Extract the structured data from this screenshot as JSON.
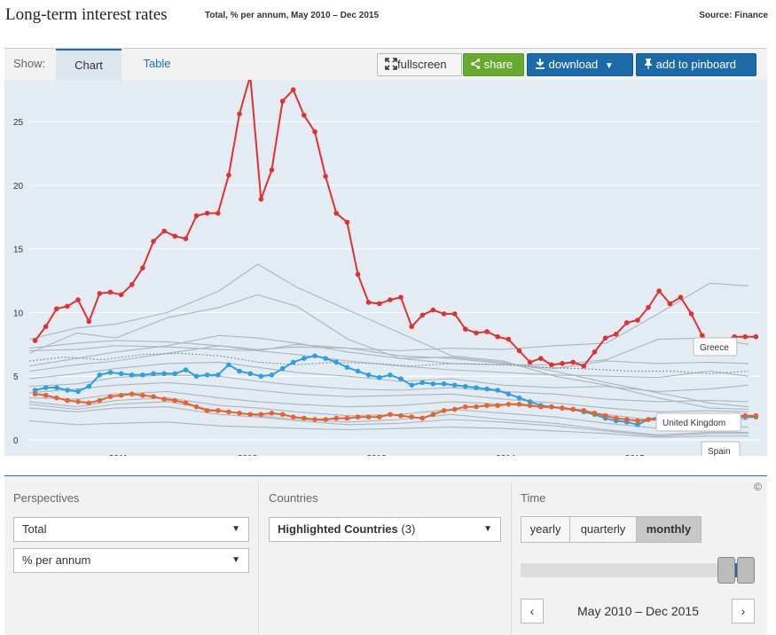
{
  "header": {
    "title": "Long-term interest rates",
    "subtitle": "Total, % per annum, May 2010 – Dec 2015",
    "source": "Source: Finance"
  },
  "toolbar": {
    "show_label": "Show:",
    "tab_chart": "Chart",
    "tab_table": "Table",
    "fullscreen": "fullscreen",
    "share": "share",
    "download": "download",
    "pinboard": "add to pinboard"
  },
  "chart_data": {
    "type": "line",
    "x_ticks": [
      "2011",
      "2012",
      "2013",
      "2014",
      "2015"
    ],
    "y_ticks": [
      0,
      5,
      10,
      15,
      20,
      25
    ],
    "ylim": [
      0,
      28
    ],
    "xlim": [
      2010.33,
      2015.99
    ],
    "grid": true,
    "series": [
      {
        "name": "Greece",
        "color": "#e03131",
        "x": [
          2010.375,
          2010.458,
          2010.542,
          2010.625,
          2010.708,
          2010.792,
          2010.875,
          2010.958,
          2011.042,
          2011.125,
          2011.208,
          2011.292,
          2011.375,
          2011.458,
          2011.542,
          2011.625,
          2011.708,
          2011.792,
          2011.875,
          2011.958,
          2012.042,
          2012.125,
          2012.208,
          2012.292,
          2012.375,
          2012.458,
          2012.542,
          2012.625,
          2012.708,
          2012.792,
          2012.875,
          2012.958,
          2013.042,
          2013.125,
          2013.208,
          2013.292,
          2013.375,
          2013.458,
          2013.542,
          2013.625,
          2013.708,
          2013.792,
          2013.875,
          2013.958,
          2014.042,
          2014.125,
          2014.208,
          2014.292,
          2014.375,
          2014.458,
          2014.542,
          2014.625,
          2014.708,
          2014.792,
          2014.875,
          2014.958,
          2015.042,
          2015.125,
          2015.208,
          2015.292,
          2015.375,
          2015.458,
          2015.542,
          2015.625,
          2015.708,
          2015.792,
          2015.875,
          2015.958
        ],
        "values": [
          7.8,
          8.9,
          10.3,
          10.5,
          11.0,
          9.3,
          11.5,
          11.6,
          11.4,
          12.2,
          13.5,
          15.6,
          16.4,
          16.0,
          15.8,
          17.6,
          17.8,
          17.8,
          20.8,
          25.6,
          28.6,
          18.9,
          21.2,
          26.6,
          27.5,
          25.5,
          24.2,
          20.7,
          17.8,
          17.1,
          13.0,
          10.8,
          10.7,
          11.0,
          11.2,
          8.9,
          9.8,
          10.2,
          9.9,
          9.9,
          8.7,
          8.4,
          8.5,
          8.1,
          7.9,
          7.0,
          6.1,
          6.4,
          5.9,
          6.0,
          6.1,
          5.8,
          6.9,
          8.0,
          8.3,
          9.2,
          9.4,
          10.4,
          11.7,
          10.7,
          11.2,
          9.9,
          8.2,
          7.2,
          7.8,
          8.1,
          8.1,
          8.1
        ],
        "label": "Greece"
      },
      {
        "name": "United Kingdom",
        "color": "#2f9fe0",
        "x": [
          2010.375,
          2010.458,
          2010.542,
          2010.625,
          2010.708,
          2010.792,
          2010.875,
          2010.958,
          2011.042,
          2011.125,
          2011.208,
          2011.292,
          2011.375,
          2011.458,
          2011.542,
          2011.625,
          2011.708,
          2011.792,
          2011.875,
          2011.958,
          2012.042,
          2012.125,
          2012.208,
          2012.292,
          2012.375,
          2012.458,
          2012.542,
          2012.625,
          2012.708,
          2012.792,
          2012.875,
          2012.958,
          2013.042,
          2013.125,
          2013.208,
          2013.292,
          2013.375,
          2013.458,
          2013.542,
          2013.625,
          2013.708,
          2013.792,
          2013.875,
          2013.958,
          2014.042,
          2014.125,
          2014.208,
          2014.292,
          2014.375,
          2014.458,
          2014.542,
          2014.625,
          2014.708,
          2014.792,
          2014.875,
          2014.958,
          2015.042,
          2015.125,
          2015.208,
          2015.292,
          2015.375,
          2015.458,
          2015.542,
          2015.625,
          2015.708,
          2015.792,
          2015.875,
          2015.958
        ],
        "values": [
          3.9,
          4.1,
          4.1,
          3.9,
          3.8,
          4.2,
          5.1,
          5.3,
          5.2,
          5.1,
          5.1,
          5.2,
          5.2,
          5.2,
          5.5,
          5.0,
          5.1,
          5.1,
          5.9,
          5.4,
          5.2,
          5.0,
          5.1,
          5.6,
          6.1,
          6.4,
          6.6,
          6.4,
          6.1,
          5.7,
          5.4,
          5.1,
          4.9,
          5.1,
          4.8,
          4.3,
          4.5,
          4.4,
          4.4,
          4.3,
          4.2,
          4.1,
          4.0,
          3.9,
          3.6,
          3.3,
          3.0,
          2.7,
          2.6,
          2.5,
          2.4,
          2.2,
          2.0,
          1.7,
          1.5,
          1.4,
          1.2,
          1.6,
          1.8,
          1.9,
          1.9,
          1.9,
          1.9,
          1.9,
          1.8,
          1.8,
          1.8,
          1.8
        ],
        "label": "United Kingdom"
      },
      {
        "name": "Spain",
        "color": "#e8622c",
        "x": [
          2010.375,
          2010.458,
          2010.542,
          2010.625,
          2010.708,
          2010.792,
          2010.875,
          2010.958,
          2011.042,
          2011.125,
          2011.208,
          2011.292,
          2011.375,
          2011.458,
          2011.542,
          2011.625,
          2011.708,
          2011.792,
          2011.875,
          2011.958,
          2012.042,
          2012.125,
          2012.208,
          2012.292,
          2012.375,
          2012.458,
          2012.542,
          2012.625,
          2012.708,
          2012.792,
          2012.875,
          2012.958,
          2013.042,
          2013.125,
          2013.208,
          2013.292,
          2013.375,
          2013.458,
          2013.542,
          2013.625,
          2013.708,
          2013.792,
          2013.875,
          2013.958,
          2014.042,
          2014.125,
          2014.208,
          2014.292,
          2014.375,
          2014.458,
          2014.542,
          2014.625,
          2014.708,
          2014.792,
          2014.875,
          2014.958,
          2015.042,
          2015.125,
          2015.208,
          2015.292,
          2015.375,
          2015.458,
          2015.542,
          2015.625,
          2015.708,
          2015.792,
          2015.875,
          2015.958
        ],
        "values": [
          3.6,
          3.5,
          3.3,
          3.1,
          3.0,
          2.9,
          3.1,
          3.4,
          3.5,
          3.6,
          3.5,
          3.4,
          3.2,
          3.1,
          2.9,
          2.6,
          2.3,
          2.3,
          2.2,
          2.1,
          2.0,
          2.0,
          2.1,
          2.0,
          1.8,
          1.7,
          1.6,
          1.6,
          1.7,
          1.7,
          1.8,
          1.8,
          1.8,
          2.0,
          1.9,
          1.8,
          1.7,
          2.0,
          2.3,
          2.4,
          2.6,
          2.6,
          2.7,
          2.7,
          2.8,
          2.8,
          2.7,
          2.6,
          2.6,
          2.5,
          2.4,
          2.3,
          2.1,
          1.9,
          1.7,
          1.6,
          1.5,
          1.6,
          1.6,
          1.7,
          1.8,
          1.9,
          1.9,
          1.9,
          1.9,
          1.9,
          1.9,
          1.9
        ],
        "label": "Spain"
      }
    ],
    "background_series": [
      {
        "x": [
          2010.33,
          2010.7,
          2011.0,
          2011.4,
          2011.8,
          2012.1,
          2012.4,
          2012.8,
          2013.2,
          2013.6,
          2014.0,
          2014.4,
          2014.8,
          2015.2,
          2015.6,
          2015.9
        ],
        "values": [
          7.9,
          8.8,
          9.1,
          10.0,
          11.7,
          13.8,
          12.0,
          10.2,
          8.4,
          6.6,
          6.2,
          5.0,
          4.3,
          3.3,
          2.5,
          2.4
        ]
      },
      {
        "x": [
          2010.33,
          2010.7,
          2011.0,
          2011.4,
          2011.8,
          2012.1,
          2012.4,
          2012.8,
          2013.2,
          2013.6,
          2014.0,
          2014.4,
          2014.8,
          2015.2,
          2015.6,
          2015.9
        ],
        "values": [
          6.8,
          8.4,
          8.0,
          9.6,
          10.4,
          11.4,
          10.5,
          7.9,
          6.4,
          6.5,
          6.1,
          5.4,
          4.5,
          3.7,
          2.9,
          2.6
        ]
      },
      {
        "x": [
          2010.33,
          2010.7,
          2011.0,
          2011.4,
          2011.8,
          2012.1,
          2012.4,
          2012.8,
          2013.2,
          2013.6,
          2014.0,
          2014.4,
          2014.8,
          2015.2,
          2015.6,
          2015.9
        ],
        "values": [
          7.2,
          7.6,
          7.8,
          7.7,
          7.4,
          7.1,
          7.3,
          7.2,
          7.0,
          7.2,
          7.1,
          7.4,
          7.6,
          9.9,
          12.3,
          12.1
        ]
      },
      {
        "x": [
          2010.33,
          2010.7,
          2011.0,
          2011.4,
          2011.8,
          2012.1,
          2012.4,
          2012.8,
          2013.2,
          2013.6,
          2014.0,
          2014.4,
          2014.8,
          2015.2,
          2015.6,
          2015.9
        ],
        "values": [
          7.0,
          7.1,
          7.4,
          7.3,
          7.1,
          7.0,
          7.5,
          7.2,
          6.6,
          6.4,
          6.0,
          5.6,
          6.2,
          6.0,
          6.1,
          6.0
        ]
      },
      {
        "x": [
          2010.33,
          2010.7,
          2011.0,
          2011.4,
          2011.8,
          2012.1,
          2012.4,
          2012.8,
          2013.2,
          2013.6,
          2014.0,
          2014.4,
          2014.8,
          2015.2,
          2015.6,
          2015.9
        ],
        "values": [
          5.8,
          6.4,
          6.9,
          7.4,
          8.2,
          8.0,
          7.6,
          6.9,
          6.4,
          6.0,
          5.9,
          5.9,
          6.3,
          7.9,
          8.0,
          7.5
        ]
      },
      {
        "x": [
          2010.33,
          2010.7,
          2011.0,
          2011.4,
          2011.8,
          2012.1,
          2012.4,
          2012.8,
          2013.2,
          2013.6,
          2014.0,
          2014.4,
          2014.8,
          2015.2,
          2015.6,
          2015.9
        ],
        "values": [
          5.4,
          5.9,
          6.2,
          6.8,
          7.4,
          7.0,
          6.7,
          6.2,
          5.8,
          5.5,
          5.3,
          5.1,
          5.0,
          4.9,
          5.4,
          5.0
        ]
      },
      {
        "x": [
          2010.33,
          2010.7,
          2011.0,
          2011.4,
          2011.8,
          2012.1,
          2012.4,
          2012.8,
          2013.2,
          2013.6,
          2014.0,
          2014.4,
          2014.8,
          2015.2,
          2015.6,
          2015.9
        ],
        "values": [
          4.8,
          5.2,
          5.6,
          6.0,
          6.1,
          5.7,
          5.3,
          5.0,
          4.6,
          4.8,
          4.3,
          4.1,
          4.2,
          3.8,
          4.0,
          4.3
        ]
      },
      {
        "x": [
          2010.33,
          2010.7,
          2011.0,
          2011.4,
          2011.8,
          2012.1,
          2012.4,
          2012.8,
          2013.2,
          2013.6,
          2014.0,
          2014.4,
          2014.8,
          2015.2,
          2015.6,
          2015.9
        ],
        "values": [
          4.2,
          4.4,
          4.9,
          5.1,
          5.0,
          4.6,
          4.3,
          4.0,
          3.9,
          4.1,
          3.8,
          3.6,
          3.2,
          3.0,
          3.1,
          3.0
        ]
      },
      {
        "x": [
          2010.33,
          2010.7,
          2011.0,
          2011.4,
          2011.8,
          2012.1,
          2012.4,
          2012.8,
          2013.2,
          2013.6,
          2014.0,
          2014.4,
          2014.8,
          2015.2,
          2015.6,
          2015.9
        ],
        "values": [
          3.7,
          4.0,
          4.3,
          4.5,
          4.2,
          3.9,
          3.6,
          3.4,
          3.5,
          3.6,
          3.2,
          2.9,
          2.5,
          2.2,
          2.3,
          2.2
        ]
      },
      {
        "x": [
          2010.33,
          2010.7,
          2011.0,
          2011.4,
          2011.8,
          2012.1,
          2012.4,
          2012.8,
          2013.2,
          2013.6,
          2014.0,
          2014.4,
          2014.8,
          2015.2,
          2015.6,
          2015.9
        ],
        "values": [
          3.3,
          3.2,
          3.6,
          3.8,
          3.3,
          3.0,
          2.8,
          2.6,
          2.7,
          3.0,
          2.8,
          2.5,
          2.0,
          1.5,
          1.7,
          1.6
        ]
      },
      {
        "x": [
          2010.33,
          2010.7,
          2011.0,
          2011.4,
          2011.8,
          2012.1,
          2012.4,
          2012.8,
          2013.2,
          2013.6,
          2014.0,
          2014.4,
          2014.8,
          2015.2,
          2015.6,
          2015.9
        ],
        "values": [
          3.0,
          2.6,
          3.1,
          3.3,
          2.7,
          2.5,
          2.2,
          1.9,
          2.0,
          2.4,
          2.1,
          1.8,
          1.3,
          0.9,
          1.1,
          1.0
        ]
      },
      {
        "x": [
          2010.33,
          2010.7,
          2011.0,
          2011.4,
          2011.8,
          2012.1,
          2012.4,
          2012.8,
          2013.2,
          2013.6,
          2014.0,
          2014.4,
          2014.8,
          2015.2,
          2015.6,
          2015.9
        ],
        "values": [
          2.8,
          2.4,
          2.8,
          3.0,
          2.3,
          1.9,
          1.6,
          1.4,
          1.6,
          2.0,
          1.6,
          1.3,
          0.8,
          0.4,
          0.6,
          0.6
        ]
      },
      {
        "x": [
          2010.33,
          2010.7,
          2011.0,
          2011.4,
          2011.8,
          2012.1,
          2012.4,
          2012.8,
          2013.2,
          2013.6,
          2014.0,
          2014.4,
          2014.8,
          2015.2,
          2015.6,
          2015.9
        ],
        "values": [
          2.5,
          2.2,
          2.5,
          2.6,
          2.0,
          1.8,
          1.5,
          1.2,
          1.3,
          1.6,
          1.4,
          1.1,
          0.7,
          0.3,
          0.5,
          0.5
        ]
      },
      {
        "x": [
          2010.33,
          2010.7,
          2011.0,
          2011.4,
          2011.8,
          2012.1,
          2012.4,
          2012.8,
          2013.2,
          2013.6,
          2014.0,
          2014.4,
          2014.8,
          2015.2,
          2015.6,
          2015.9
        ],
        "values": [
          1.5,
          1.2,
          1.3,
          1.4,
          1.1,
          1.0,
          0.9,
          0.8,
          0.9,
          1.0,
          0.9,
          0.7,
          0.5,
          0.2,
          0.3,
          0.3
        ]
      }
    ],
    "dotted_series": {
      "x": [
        2010.33,
        2010.6,
        2010.9,
        2011.2,
        2011.5,
        2011.8,
        2012.1,
        2012.4,
        2012.7,
        2013.0,
        2013.3,
        2013.6,
        2014.0,
        2014.3,
        2014.6,
        2015.0,
        2015.3,
        2015.6,
        2015.9
      ],
      "values": [
        6.2,
        6.5,
        6.3,
        6.7,
        6.8,
        6.6,
        6.1,
        5.9,
        6.1,
        6.0,
        5.8,
        6.0,
        5.9,
        5.7,
        5.6,
        5.4,
        5.4,
        5.2,
        5.4
      ]
    }
  },
  "controls": {
    "perspectives": {
      "title": "Perspectives",
      "select1": "Total",
      "select2": "% per annum"
    },
    "countries": {
      "title": "Countries",
      "select_label": "Highlighted Countries",
      "select_count": "(3)"
    },
    "time": {
      "title": "Time",
      "yearly": "yearly",
      "quarterly": "quarterly",
      "monthly": "monthly",
      "range": "May 2010 – Dec 2015",
      "slider_start": 0.91,
      "slider_end": 1.0
    },
    "copyright": "©"
  }
}
